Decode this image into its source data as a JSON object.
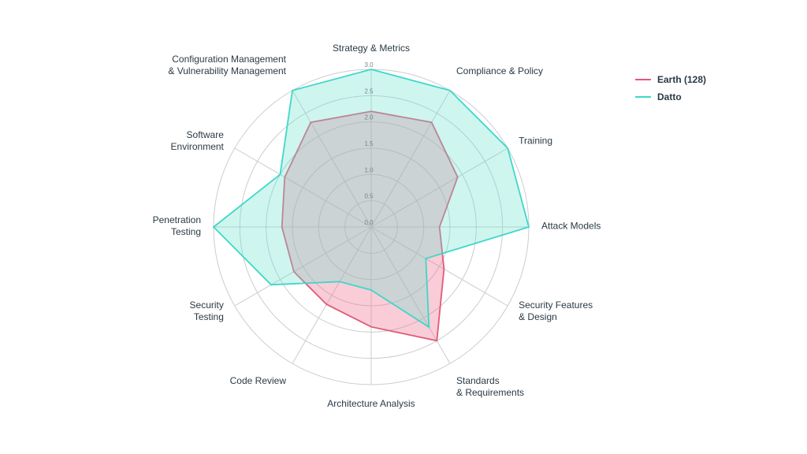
{
  "chart_data": {
    "type": "radar",
    "axes": [
      [
        "Strategy & Metrics"
      ],
      [
        "Compliance & Policy"
      ],
      [
        "Training"
      ],
      [
        "Attack Models"
      ],
      [
        "Security Features",
        "& Design"
      ],
      [
        "Standards",
        "& Requirements"
      ],
      [
        "Architecture Analysis"
      ],
      [
        "Code Review"
      ],
      [
        "Security",
        "Testing"
      ],
      [
        "Penetration",
        "Testing"
      ],
      [
        "Software",
        "Environment"
      ],
      [
        "Configuration Management",
        "& Vulnerability Management"
      ]
    ],
    "ticks": [
      "0.0",
      "0.5",
      "1.0",
      "1.5",
      "2.0",
      "2.5",
      "3.0"
    ],
    "rmax": 3.0,
    "series": [
      {
        "name": "Earth (128)",
        "legend_label": "Earth  (128)",
        "color": "#e05a78",
        "fill": "rgba(240,120,150,0.38)",
        "values": [
          2.2,
          2.3,
          1.9,
          1.3,
          1.6,
          2.5,
          1.9,
          1.7,
          1.7,
          1.7,
          1.9,
          2.3
        ]
      },
      {
        "name": "Datto",
        "legend_label": "Datto",
        "color": "#3dd8c8",
        "fill": "rgba(110,225,205,0.33)",
        "values": [
          3.0,
          3.0,
          3.0,
          3.0,
          1.2,
          2.2,
          1.2,
          1.2,
          2.2,
          3.0,
          2.0,
          3.0
        ]
      }
    ],
    "legend_position": "top-right"
  }
}
